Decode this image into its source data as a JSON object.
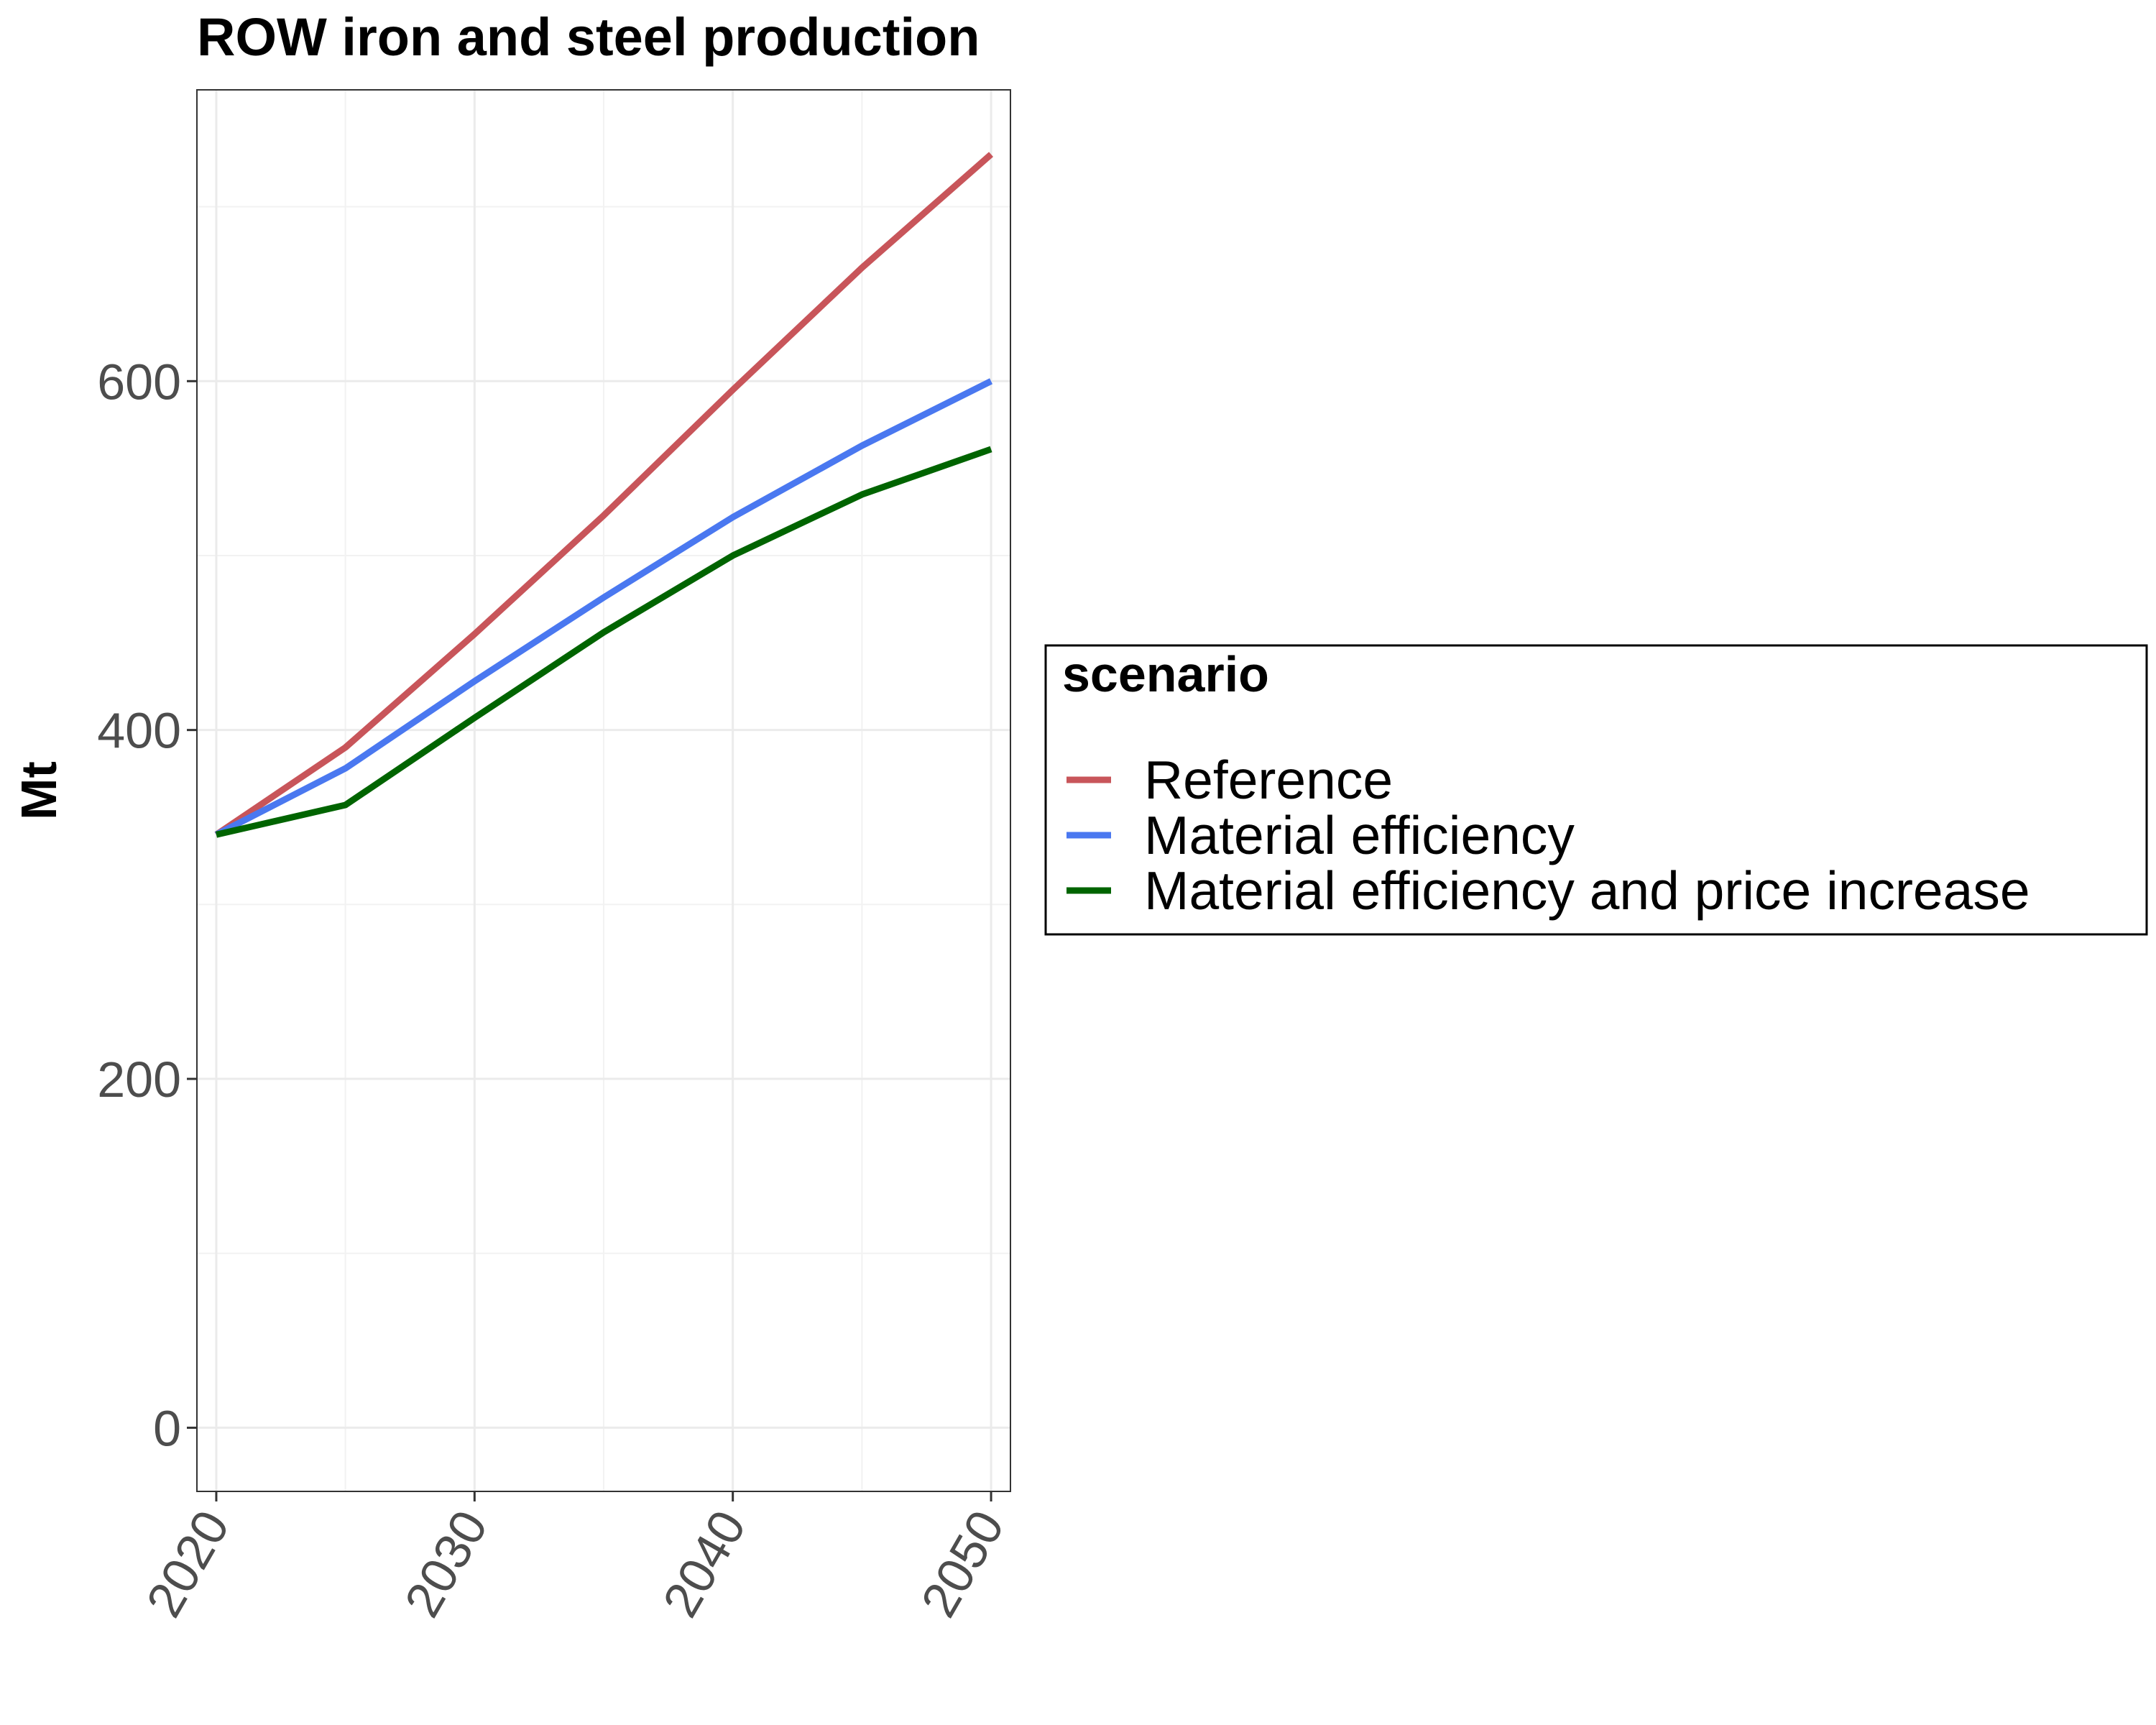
{
  "chart_data": {
    "type": "line",
    "title": "ROW  iron and steel production",
    "xlabel": "",
    "ylabel": "Mt",
    "x": [
      2020,
      2025,
      2030,
      2035,
      2040,
      2045,
      2050
    ],
    "xticks": [
      "2020",
      "2030",
      "2040",
      "2050"
    ],
    "yticks": [
      "0",
      "200",
      "400",
      "600"
    ],
    "xlim": [
      2019.25,
      2050.75
    ],
    "ylim": [
      -36.5,
      767
    ],
    "grid": true,
    "legend": {
      "title": "scenario",
      "position": "right"
    },
    "series": [
      {
        "name": "Reference",
        "color": "#c8555a",
        "values": [
          340,
          390,
          455,
          523,
          595,
          665,
          730
        ]
      },
      {
        "name": "Material efficiency",
        "color": "#4a78f0",
        "values": [
          340,
          378,
          428,
          476,
          522,
          563,
          600
        ]
      },
      {
        "name": "Material efficiency and price increase",
        "color": "#006400",
        "values": [
          340,
          357,
          407,
          456,
          500,
          535,
          561
        ]
      }
    ]
  }
}
